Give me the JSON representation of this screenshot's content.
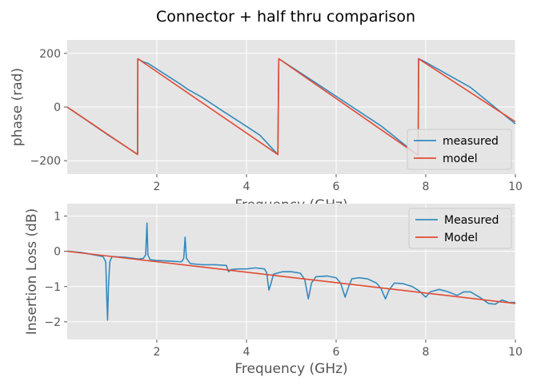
{
  "figure_title": "Connector + half thru comparison",
  "colors": {
    "plot_bg": "#e5e5e5",
    "grid": "#ffffff",
    "measured": "#348abd",
    "model": "#e24a33",
    "text": "#555555"
  },
  "chart_data": [
    {
      "type": "line",
      "xlabel": "Frequency (GHz)",
      "ylabel": "phase (rad)",
      "xlim": [
        0,
        10
      ],
      "ylim": [
        -250,
        250
      ],
      "xticks": [
        2,
        4,
        6,
        8,
        10
      ],
      "yticks": [
        -200,
        0,
        200
      ],
      "xtick_labels": [
        "2",
        "4",
        "6",
        "8",
        "10"
      ],
      "ytick_labels": [
        "−200",
        "0",
        "200"
      ],
      "grid": true,
      "legend": "lower-right",
      "series": [
        {
          "name": "measured",
          "color": "#348abd",
          "points": [
            [
              0,
              0
            ],
            [
              0.85,
              -97
            ],
            [
              0.9,
              -103
            ],
            [
              1.57,
              -176
            ],
            [
              1.575,
              180
            ],
            [
              1.6,
              177
            ],
            [
              1.7,
              168
            ],
            [
              1.8,
              163
            ],
            [
              2.5,
              88
            ],
            [
              2.7,
              65
            ],
            [
              3,
              37
            ],
            [
              3.5,
              -18
            ],
            [
              4,
              -72
            ],
            [
              4.3,
              -105
            ],
            [
              4.7,
              -177
            ],
            [
              4.72,
              180
            ],
            [
              5.2,
              128
            ],
            [
              6,
              40
            ],
            [
              7,
              -70
            ],
            [
              7.75,
              -170
            ],
            [
              7.83,
              -180
            ],
            [
              7.84,
              180
            ],
            [
              8,
              167
            ],
            [
              9,
              73
            ],
            [
              10,
              -63
            ]
          ]
        },
        {
          "name": "model",
          "color": "#e24a33",
          "points": [
            [
              0,
              0
            ],
            [
              1.57,
              -177
            ],
            [
              1.575,
              180
            ],
            [
              4.7,
              -177
            ],
            [
              4.72,
              180
            ],
            [
              7.83,
              -180
            ],
            [
              7.84,
              180
            ],
            [
              10,
              -55
            ]
          ]
        }
      ]
    },
    {
      "type": "line",
      "xlabel": "Frequency (GHz)",
      "ylabel": "Insertion Loss (dB)",
      "xlim": [
        0,
        10
      ],
      "ylim": [
        -2.5,
        1.35
      ],
      "xticks": [
        2,
        4,
        6,
        8,
        10
      ],
      "yticks": [
        -2,
        -1,
        0,
        1
      ],
      "xtick_labels": [
        "2",
        "4",
        "6",
        "8",
        "10"
      ],
      "ytick_labels": [
        "−2",
        "−1",
        "0",
        "1"
      ],
      "grid": true,
      "legend": "top-right",
      "series": [
        {
          "name": "Measured",
          "color": "#348abd",
          "points": [
            [
              0,
              0
            ],
            [
              0.3,
              -0.03
            ],
            [
              0.6,
              -0.1
            ],
            [
              0.8,
              -0.15
            ],
            [
              0.86,
              -0.3
            ],
            [
              0.88,
              -1.2
            ],
            [
              0.9,
              -1.95
            ],
            [
              0.92,
              -1.0
            ],
            [
              0.95,
              -0.3
            ],
            [
              1.0,
              -0.15
            ],
            [
              1.3,
              -0.17
            ],
            [
              1.6,
              -0.22
            ],
            [
              1.7,
              -0.2
            ],
            [
              1.75,
              -0.1
            ],
            [
              1.78,
              0.8
            ],
            [
              1.8,
              -0.1
            ],
            [
              1.85,
              -0.24
            ],
            [
              2.0,
              -0.26
            ],
            [
              2.3,
              -0.28
            ],
            [
              2.55,
              -0.3
            ],
            [
              2.6,
              -0.2
            ],
            [
              2.63,
              0.4
            ],
            [
              2.66,
              -0.2
            ],
            [
              2.75,
              -0.35
            ],
            [
              3.0,
              -0.38
            ],
            [
              3.3,
              -0.38
            ],
            [
              3.55,
              -0.4
            ],
            [
              3.6,
              -0.58
            ],
            [
              3.65,
              -0.52
            ],
            [
              3.8,
              -0.5
            ],
            [
              4.0,
              -0.5
            ],
            [
              4.2,
              -0.47
            ],
            [
              4.4,
              -0.5
            ],
            [
              4.45,
              -0.6
            ],
            [
              4.5,
              -1.1
            ],
            [
              4.55,
              -0.9
            ],
            [
              4.6,
              -0.65
            ],
            [
              4.8,
              -0.58
            ],
            [
              5.0,
              -0.58
            ],
            [
              5.2,
              -0.62
            ],
            [
              5.3,
              -0.8
            ],
            [
              5.38,
              -1.35
            ],
            [
              5.45,
              -0.9
            ],
            [
              5.55,
              -0.72
            ],
            [
              5.8,
              -0.7
            ],
            [
              6.0,
              -0.75
            ],
            [
              6.1,
              -0.9
            ],
            [
              6.2,
              -1.3
            ],
            [
              6.28,
              -1.0
            ],
            [
              6.35,
              -0.78
            ],
            [
              6.5,
              -0.75
            ],
            [
              6.7,
              -0.78
            ],
            [
              6.9,
              -0.9
            ],
            [
              7.0,
              -1.05
            ],
            [
              7.1,
              -1.35
            ],
            [
              7.18,
              -1.1
            ],
            [
              7.3,
              -0.9
            ],
            [
              7.5,
              -0.92
            ],
            [
              7.7,
              -1.0
            ],
            [
              7.85,
              -1.12
            ],
            [
              8.0,
              -1.3
            ],
            [
              8.1,
              -1.15
            ],
            [
              8.3,
              -1.08
            ],
            [
              8.5,
              -1.15
            ],
            [
              8.7,
              -1.25
            ],
            [
              8.85,
              -1.15
            ],
            [
              9.0,
              -1.15
            ],
            [
              9.2,
              -1.3
            ],
            [
              9.4,
              -1.48
            ],
            [
              9.55,
              -1.5
            ],
            [
              9.7,
              -1.38
            ],
            [
              9.85,
              -1.45
            ],
            [
              10,
              -1.45
            ]
          ]
        },
        {
          "name": "Model",
          "color": "#e24a33",
          "points": [
            [
              0,
              0
            ],
            [
              10,
              -1.48
            ]
          ]
        }
      ]
    }
  ]
}
